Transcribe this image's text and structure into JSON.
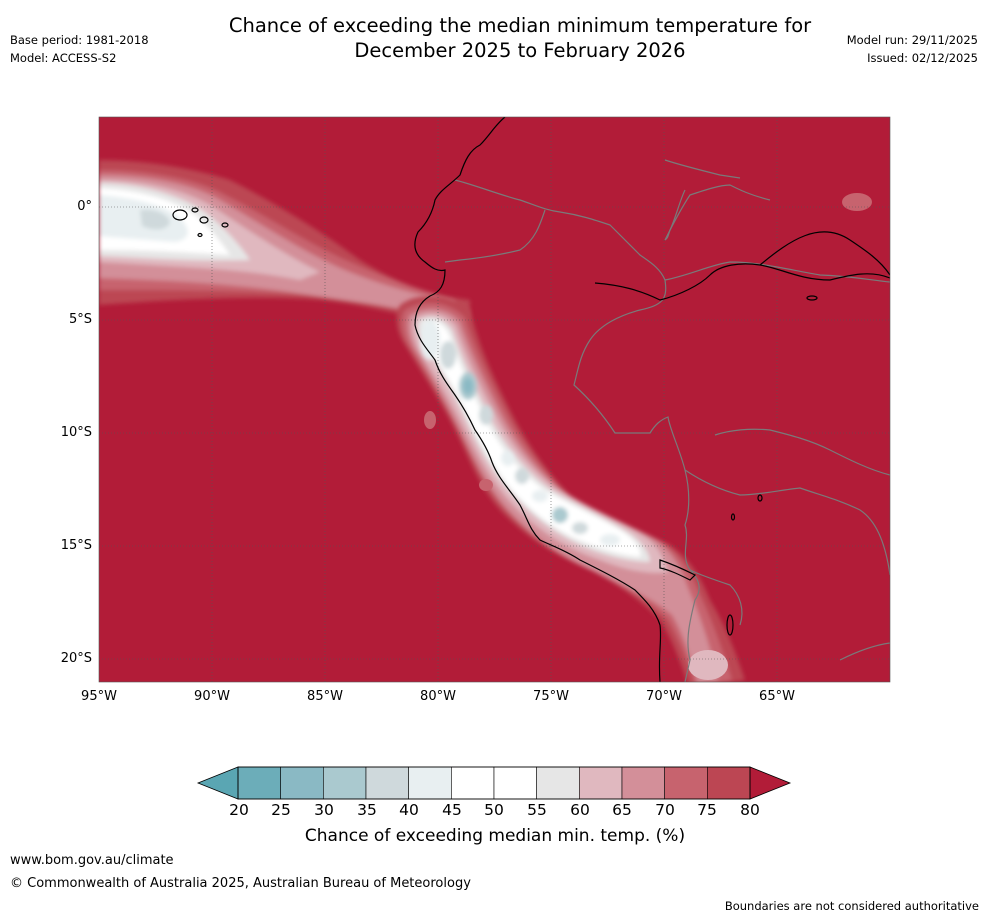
{
  "header": {
    "title_line1": "Chance of exceeding the median minimum temperature for",
    "title_line2": "December 2025 to February 2026",
    "base_period": "Base period: 1981-2018",
    "model": "Model: ACCESS-S2",
    "model_run": "Model run: 29/11/2025",
    "issued": "Issued: 02/12/2025"
  },
  "map": {
    "lon_range": [
      -95,
      -60
    ],
    "lat_range": [
      -21,
      4
    ],
    "lat_labels": [
      "0°",
      "5°S",
      "10°S",
      "15°S",
      "20°S"
    ],
    "lon_labels": [
      "95°W",
      "90°W",
      "85°W",
      "80°W",
      "75°W",
      "70°W",
      "65°W"
    ],
    "dominant_category": "80+ (ocean mostly exceeds 80%)",
    "cool_zone": "Coastal upwelling off Peru/Ecuador with 20-50% chance"
  },
  "colorbar": {
    "ticks": [
      "20",
      "25",
      "30",
      "35",
      "40",
      "45",
      "50",
      "55",
      "60",
      "65",
      "70",
      "75",
      "80"
    ],
    "colors": [
      "#6cadb9",
      "#8ab9c4",
      "#aac9cf",
      "#cfd9dc",
      "#e8eff1",
      "#ffffff",
      "#ffffff",
      "#e6e6e6",
      "#e0b8bf",
      "#d38f99",
      "#c7636e",
      "#bc4653"
    ],
    "low_color": "#5aa6b3",
    "high_color": "#b21c38",
    "label": "Chance of exceeding median min. temp. (%)"
  },
  "footer": {
    "url": "www.bom.gov.au/climate",
    "copyright": "© Commonwealth of Australia 2025, Australian Bureau of Meteorology",
    "disclaimer": "Boundaries are not considered authoritative"
  }
}
